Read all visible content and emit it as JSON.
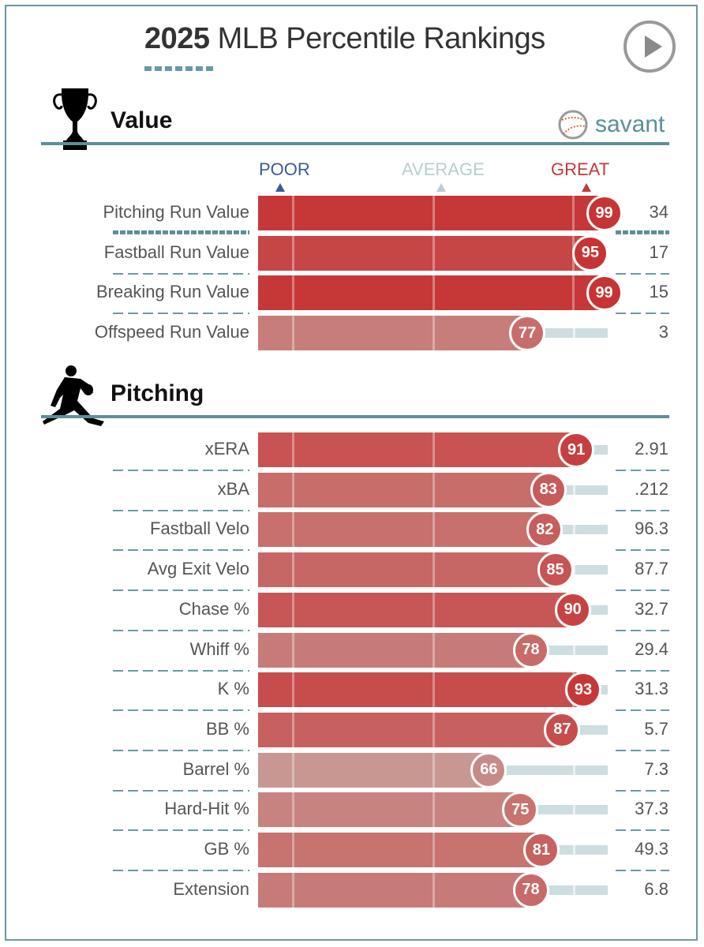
{
  "header": {
    "title_year": "2025",
    "title_rest": " MLB Percentile Rankings",
    "play_button": "play-icon"
  },
  "brand": {
    "label": "savant",
    "icon": "baseball-icon"
  },
  "scale": {
    "poor": "POOR",
    "average": "AVERAGE",
    "great": "GREAT",
    "colors": {
      "poor": "#3a5a9a",
      "average": "#b9cdd2",
      "great": "#c23a3a"
    }
  },
  "sections": [
    {
      "title": "Value",
      "icon": "trophy-icon"
    },
    {
      "title": "Pitching",
      "icon": "pitcher-icon"
    }
  ],
  "chart_data": {
    "type": "bar",
    "title": "2025 MLB Percentile Rankings",
    "xlabel": "Percentile",
    "xlim": [
      0,
      100
    ],
    "scale_ticks": {
      "POOR": 10,
      "AVERAGE": 50,
      "GREAT": 90
    },
    "groups": [
      {
        "name": "Value",
        "rows": [
          {
            "label": "Pitching Run Value",
            "percentile": 99,
            "value": "34"
          },
          {
            "label": "Fastball Run Value",
            "percentile": 95,
            "value": "17"
          },
          {
            "label": "Breaking Run Value",
            "percentile": 99,
            "value": "15"
          },
          {
            "label": "Offspeed Run Value",
            "percentile": 77,
            "value": "3"
          }
        ]
      },
      {
        "name": "Pitching",
        "rows": [
          {
            "label": "xERA",
            "percentile": 91,
            "value": "2.91"
          },
          {
            "label": "xBA",
            "percentile": 83,
            "value": ".212"
          },
          {
            "label": "Fastball Velo",
            "percentile": 82,
            "value": "96.3"
          },
          {
            "label": "Avg Exit Velo",
            "percentile": 85,
            "value": "87.7"
          },
          {
            "label": "Chase %",
            "percentile": 90,
            "value": "32.7"
          },
          {
            "label": "Whiff %",
            "percentile": 78,
            "value": "29.4"
          },
          {
            "label": "K %",
            "percentile": 93,
            "value": "31.3"
          },
          {
            "label": "BB %",
            "percentile": 87,
            "value": "5.7"
          },
          {
            "label": "Barrel %",
            "percentile": 66,
            "value": "7.3"
          },
          {
            "label": "Hard-Hit %",
            "percentile": 75,
            "value": "37.3"
          },
          {
            "label": "GB %",
            "percentile": 81,
            "value": "49.3"
          },
          {
            "label": "Extension",
            "percentile": 78,
            "value": "6.8"
          }
        ]
      }
    ]
  }
}
